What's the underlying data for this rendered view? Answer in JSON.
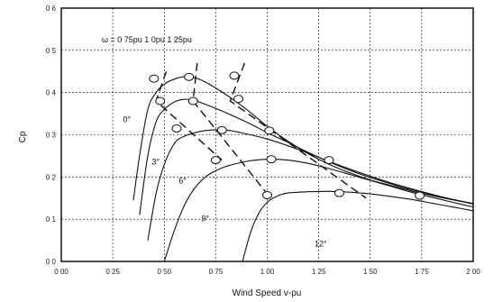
{
  "chart_data": {
    "type": "line",
    "title": "",
    "xlabel": "Wind Speed v-pu",
    "ylabel": "Cp",
    "xlim": [
      0,
      2.0
    ],
    "ylim": [
      0,
      0.6
    ],
    "x_ticks": [
      0,
      0.25,
      0.5,
      0.75,
      1.0,
      1.25,
      1.5,
      1.75,
      2.0
    ],
    "x_tick_labels": [
      "0 00",
      "0 25",
      "0 50",
      "0 75",
      "1 00",
      "1 25",
      "1 50",
      "1 75",
      "2 00"
    ],
    "y_ticks": [
      0,
      0.1,
      0.2,
      0.3,
      0.4,
      0.5,
      0.6
    ],
    "y_tick_labels": [
      "0 0",
      "0 1",
      "0 2",
      "0 3",
      "0 4",
      "0 5",
      "0 6"
    ],
    "grid": true,
    "annotation": "ω = 0 75pu   1 0pu   1 25pu",
    "series": [
      {
        "name": "0°",
        "x": [
          0.35,
          0.38,
          0.42,
          0.46,
          0.5,
          0.55,
          0.6,
          0.65,
          0.7,
          0.8,
          0.9,
          1.0,
          1.1,
          1.2,
          1.3,
          1.4,
          1.5,
          1.6,
          1.7,
          1.8,
          1.9,
          2.0
        ],
        "y": [
          0.145,
          0.25,
          0.36,
          0.4,
          0.42,
          0.432,
          0.438,
          0.435,
          0.425,
          0.395,
          0.36,
          0.32,
          0.285,
          0.255,
          0.23,
          0.21,
          0.193,
          0.18,
          0.167,
          0.156,
          0.146,
          0.137
        ]
      },
      {
        "name": "3°",
        "x": [
          0.38,
          0.42,
          0.46,
          0.5,
          0.55,
          0.6,
          0.65,
          0.7,
          0.8,
          0.9,
          1.0,
          1.1,
          1.2,
          1.3,
          1.4,
          1.5,
          1.6,
          1.7,
          1.8,
          1.9,
          2.0
        ],
        "y": [
          0.11,
          0.25,
          0.33,
          0.36,
          0.378,
          0.384,
          0.381,
          0.372,
          0.352,
          0.33,
          0.305,
          0.282,
          0.258,
          0.236,
          0.216,
          0.199,
          0.184,
          0.17,
          0.158,
          0.147,
          0.137
        ]
      },
      {
        "name": "6°",
        "x": [
          0.42,
          0.46,
          0.5,
          0.55,
          0.6,
          0.7,
          0.8,
          0.9,
          1.0,
          1.1,
          1.2,
          1.3,
          1.4,
          1.5,
          1.6,
          1.7,
          1.8,
          1.9,
          2.0
        ],
        "y": [
          0.05,
          0.16,
          0.23,
          0.28,
          0.297,
          0.31,
          0.311,
          0.302,
          0.29,
          0.274,
          0.256,
          0.237,
          0.219,
          0.202,
          0.186,
          0.172,
          0.159,
          0.147,
          0.136
        ]
      },
      {
        "name": "9°",
        "x": [
          0.5,
          0.55,
          0.6,
          0.65,
          0.7,
          0.75,
          0.8,
          0.9,
          1.0,
          1.1,
          1.2,
          1.3,
          1.4,
          1.5,
          1.6,
          1.7,
          1.8,
          1.9,
          2.0
        ],
        "y": [
          0.0,
          0.075,
          0.135,
          0.175,
          0.2,
          0.215,
          0.225,
          0.237,
          0.242,
          0.24,
          0.232,
          0.22,
          0.206,
          0.192,
          0.178,
          0.164,
          0.152,
          0.14,
          0.129
        ]
      },
      {
        "name": "12°",
        "x": [
          0.88,
          0.92,
          0.96,
          1.0,
          1.05,
          1.1,
          1.2,
          1.3,
          1.4,
          1.5,
          1.6,
          1.7,
          1.8,
          1.9,
          2.0
        ],
        "y": [
          0.0,
          0.07,
          0.115,
          0.14,
          0.155,
          0.162,
          0.165,
          0.166,
          0.164,
          0.16,
          0.154,
          0.147,
          0.138,
          0.129,
          0.12
        ]
      }
    ],
    "omega_lines": [
      {
        "name": "0 75pu",
        "x": [
          0.51,
          0.46,
          0.78
        ],
        "y": [
          0.45,
          0.38,
          0.24
        ]
      },
      {
        "name": "1 0pu",
        "x": [
          0.66,
          0.64,
          1.0
        ],
        "y": [
          0.47,
          0.38,
          0.16
        ]
      },
      {
        "name": "1 25pu",
        "x": [
          0.89,
          0.82,
          1.48
        ],
        "y": [
          0.47,
          0.38,
          0.15
        ]
      }
    ],
    "markers": {
      "x": [
        0.45,
        0.48,
        0.62,
        0.64,
        0.56,
        0.78,
        0.75,
        1.01,
        1.0,
        0.84,
        0.86,
        1.02,
        1.3,
        1.35,
        1.74
      ],
      "y": [
        0.433,
        0.38,
        0.437,
        0.38,
        0.315,
        0.311,
        0.24,
        0.31,
        0.157,
        0.44,
        0.385,
        0.242,
        0.24,
        0.162,
        0.156
      ]
    },
    "series_labels": [
      {
        "text": "0°",
        "x": 0.3,
        "y": 0.33
      },
      {
        "text": "3°",
        "x": 0.44,
        "y": 0.23
      },
      {
        "text": "6°",
        "x": 0.57,
        "y": 0.185
      },
      {
        "text": "9°",
        "x": 0.68,
        "y": 0.095
      },
      {
        "text": "12°",
        "x": 1.23,
        "y": 0.035
      }
    ]
  }
}
